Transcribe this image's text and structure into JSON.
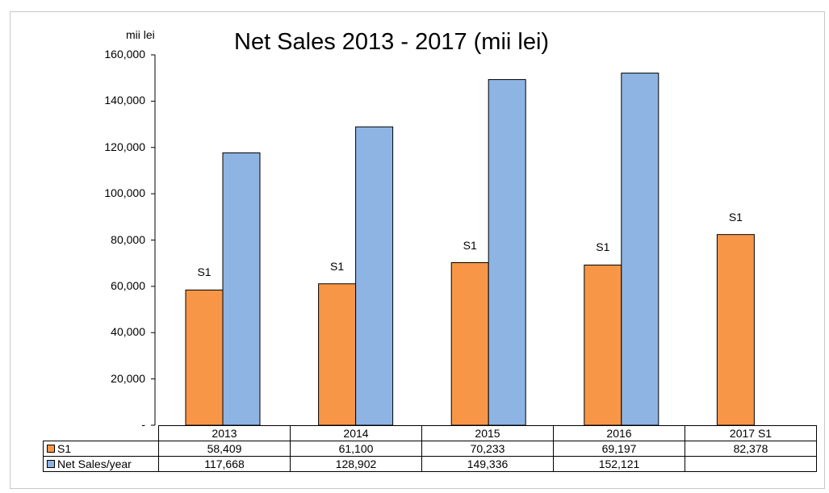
{
  "chart_data": {
    "type": "bar",
    "title": "Net Sales 2013 - 2017 (mii lei)",
    "ylabel": "mii lei",
    "categories": [
      "2013",
      "2014",
      "2015",
      "2016",
      "2017 S1"
    ],
    "ylim": [
      0,
      160000
    ],
    "yticks": [
      "-",
      "20,000",
      "40,000",
      "60,000",
      "80,000",
      "100,000",
      "120,000",
      "140,000",
      "160,000"
    ],
    "series": [
      {
        "name": "S1",
        "color": "#f79646",
        "values": [
          58409,
          61100,
          70233,
          69197,
          82378
        ],
        "display": [
          "58,409",
          "61,100",
          "70,233",
          "69,197",
          "82,378"
        ],
        "data_label": "S1"
      },
      {
        "name": "Net Sales/year",
        "color": "#8db4e2",
        "values": [
          117668,
          128902,
          149336,
          152121,
          null
        ],
        "display": [
          "117,668",
          "128,902",
          "149,336",
          "152,121",
          ""
        ]
      }
    ],
    "grid": false,
    "legend": "data-table"
  }
}
